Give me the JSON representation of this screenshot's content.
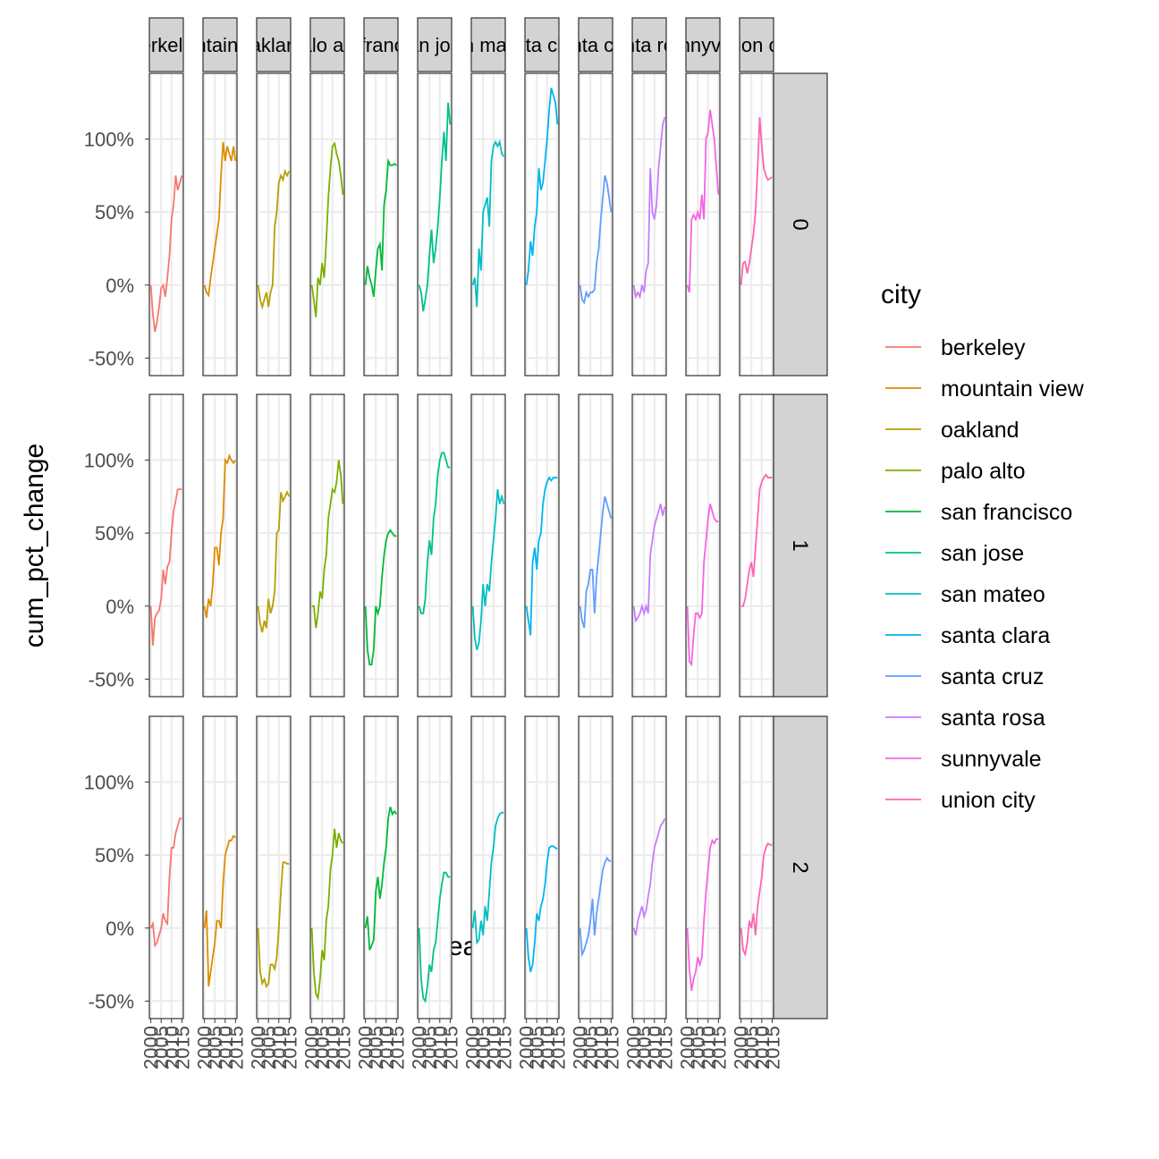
{
  "chart_data": {
    "type": "line",
    "x_label": "year",
    "y_label": "cum_pct_change",
    "legend_title": "city",
    "rows": [
      "0",
      "1",
      "2"
    ],
    "x": [
      2000,
      2001,
      2002,
      2003,
      2004,
      2005,
      2006,
      2007,
      2008,
      2009,
      2010,
      2011,
      2012,
      2013,
      2014,
      2015
    ],
    "xlim": [
      1999.3,
      2015.7
    ],
    "xticks": [
      2000,
      2005,
      2010,
      2015
    ],
    "ylim": [
      -62,
      145
    ],
    "yticks": [
      {
        "value": -50,
        "label": "-50%"
      },
      {
        "value": 0,
        "label": "0%"
      },
      {
        "value": 50,
        "label": "50%"
      },
      {
        "value": 100,
        "label": "100%"
      }
    ],
    "grid": true,
    "series": [
      {
        "name": "berkeley",
        "color": "#F8766D",
        "values": [
          [
            0,
            -20,
            -32,
            -25,
            -15,
            -2,
            0,
            -8,
            5,
            20,
            45,
            55,
            75,
            65,
            70,
            75
          ],
          [
            0,
            -27,
            -8,
            -5,
            -3,
            5,
            25,
            15,
            27,
            30,
            50,
            65,
            72,
            80,
            80,
            80
          ],
          [
            0,
            3,
            -12,
            -10,
            -5,
            0,
            10,
            5,
            3,
            35,
            55,
            55,
            65,
            70,
            75,
            75
          ]
        ]
      },
      {
        "name": "mountain view",
        "color": "#DE8C00",
        "values": [
          [
            0,
            -5,
            -7,
            5,
            15,
            25,
            35,
            45,
            75,
            98,
            85,
            95,
            90,
            85,
            95,
            85
          ],
          [
            0,
            -8,
            5,
            0,
            15,
            40,
            40,
            28,
            50,
            60,
            100,
            98,
            103,
            100,
            98,
            100
          ],
          [
            0,
            12,
            -40,
            -30,
            -20,
            -10,
            5,
            5,
            0,
            30,
            50,
            55,
            60,
            60,
            63,
            62
          ]
        ]
      },
      {
        "name": "oakland",
        "color": "#B79F00",
        "values": [
          [
            0,
            -10,
            -15,
            -10,
            -5,
            -15,
            -5,
            0,
            40,
            50,
            70,
            75,
            72,
            78,
            75,
            78
          ],
          [
            0,
            -12,
            -18,
            -10,
            -15,
            5,
            -5,
            0,
            10,
            50,
            52,
            78,
            72,
            75,
            78,
            75
          ],
          [
            0,
            -30,
            -38,
            -35,
            -40,
            -38,
            -25,
            -25,
            -28,
            -20,
            0,
            25,
            45,
            45,
            44,
            44
          ]
        ]
      },
      {
        "name": "palo alto",
        "color": "#7CAE00",
        "values": [
          [
            0,
            -10,
            -22,
            5,
            0,
            15,
            5,
            30,
            60,
            80,
            95,
            97,
            90,
            85,
            75,
            62
          ],
          [
            0,
            0,
            -15,
            -5,
            10,
            5,
            25,
            35,
            60,
            70,
            80,
            78,
            85,
            100,
            90,
            70
          ],
          [
            0,
            -30,
            -45,
            -48,
            -35,
            -15,
            -22,
            5,
            15,
            40,
            50,
            68,
            55,
            65,
            60,
            58
          ]
        ]
      },
      {
        "name": "san francisco",
        "color": "#00BA38",
        "values": [
          [
            0,
            13,
            5,
            0,
            -8,
            10,
            25,
            28,
            10,
            55,
            65,
            85,
            82,
            82,
            83,
            82
          ],
          [
            0,
            -30,
            -40,
            -40,
            -30,
            0,
            -5,
            0,
            20,
            35,
            45,
            50,
            52,
            50,
            48,
            48
          ],
          [
            0,
            8,
            -15,
            -12,
            -8,
            25,
            35,
            20,
            30,
            45,
            55,
            75,
            83,
            78,
            80,
            78
          ]
        ]
      },
      {
        "name": "san jose",
        "color": "#00C08B",
        "values": [
          [
            0,
            -5,
            -18,
            -10,
            0,
            20,
            38,
            15,
            25,
            40,
            60,
            85,
            105,
            85,
            125,
            110
          ],
          [
            0,
            -5,
            -5,
            5,
            30,
            45,
            35,
            60,
            70,
            90,
            100,
            105,
            105,
            100,
            95,
            95
          ],
          [
            0,
            -35,
            -48,
            -50,
            -40,
            -25,
            -30,
            -15,
            -10,
            5,
            20,
            30,
            38,
            38,
            35,
            35
          ]
        ]
      },
      {
        "name": "san mateo",
        "color": "#00BFC4",
        "values": [
          [
            0,
            5,
            -15,
            25,
            10,
            50,
            55,
            60,
            40,
            85,
            95,
            98,
            95,
            98,
            90,
            88
          ],
          [
            0,
            -22,
            -30,
            -25,
            -10,
            15,
            0,
            15,
            10,
            30,
            45,
            60,
            80,
            70,
            75,
            70
          ],
          [
            0,
            12,
            -10,
            -8,
            5,
            -5,
            15,
            5,
            25,
            45,
            55,
            70,
            75,
            78,
            79,
            79
          ]
        ]
      },
      {
        "name": "santa clara",
        "color": "#00B4F0",
        "values": [
          [
            0,
            10,
            30,
            20,
            40,
            50,
            80,
            65,
            70,
            85,
            100,
            120,
            135,
            130,
            125,
            110
          ],
          [
            0,
            -10,
            -20,
            30,
            40,
            25,
            45,
            50,
            70,
            80,
            85,
            88,
            86,
            88,
            88,
            88
          ],
          [
            0,
            -20,
            -30,
            -25,
            -10,
            10,
            5,
            15,
            20,
            30,
            45,
            55,
            56,
            56,
            55,
            54
          ]
        ]
      },
      {
        "name": "santa cruz",
        "color": "#619CFF",
        "values": [
          [
            0,
            -10,
            -12,
            -5,
            -8,
            -5,
            -5,
            -3,
            15,
            25,
            45,
            60,
            75,
            70,
            60,
            50
          ],
          [
            0,
            -10,
            -15,
            10,
            15,
            25,
            25,
            -5,
            20,
            35,
            50,
            65,
            75,
            70,
            65,
            60
          ],
          [
            0,
            -18,
            -15,
            -10,
            -5,
            5,
            20,
            -5,
            10,
            20,
            30,
            40,
            45,
            48,
            46,
            46
          ]
        ]
      },
      {
        "name": "santa rosa",
        "color": "#C77CFF",
        "values": [
          [
            0,
            -8,
            -5,
            -8,
            0,
            -5,
            10,
            15,
            80,
            50,
            45,
            55,
            80,
            95,
            110,
            115
          ],
          [
            0,
            -10,
            -8,
            -5,
            0,
            -5,
            0,
            -5,
            35,
            45,
            55,
            60,
            65,
            70,
            62,
            68
          ],
          [
            0,
            -5,
            5,
            10,
            15,
            8,
            12,
            22,
            30,
            45,
            55,
            60,
            65,
            70,
            72,
            75
          ]
        ]
      },
      {
        "name": "sunnyvale",
        "color": "#F564E3",
        "values": [
          [
            0,
            -5,
            45,
            48,
            45,
            50,
            45,
            62,
            45,
            100,
            105,
            120,
            110,
            100,
            80,
            62
          ],
          [
            0,
            -38,
            -40,
            -20,
            -5,
            -5,
            -8,
            -5,
            30,
            45,
            60,
            70,
            65,
            60,
            58,
            58
          ],
          [
            0,
            -28,
            -43,
            -35,
            -30,
            -20,
            -25,
            -20,
            5,
            25,
            40,
            55,
            60,
            58,
            61,
            61
          ]
        ]
      },
      {
        "name": "union city",
        "color": "#FF64B0",
        "values": [
          [
            0,
            15,
            16,
            8,
            15,
            25,
            35,
            50,
            80,
            115,
            95,
            80,
            75,
            72,
            73,
            74
          ],
          [
            0,
            0,
            5,
            15,
            25,
            30,
            20,
            40,
            60,
            80,
            85,
            88,
            90,
            88,
            88,
            88
          ],
          [
            0,
            -15,
            -18,
            -10,
            5,
            0,
            10,
            -5,
            15,
            25,
            35,
            50,
            55,
            58,
            57,
            57
          ]
        ]
      }
    ]
  }
}
